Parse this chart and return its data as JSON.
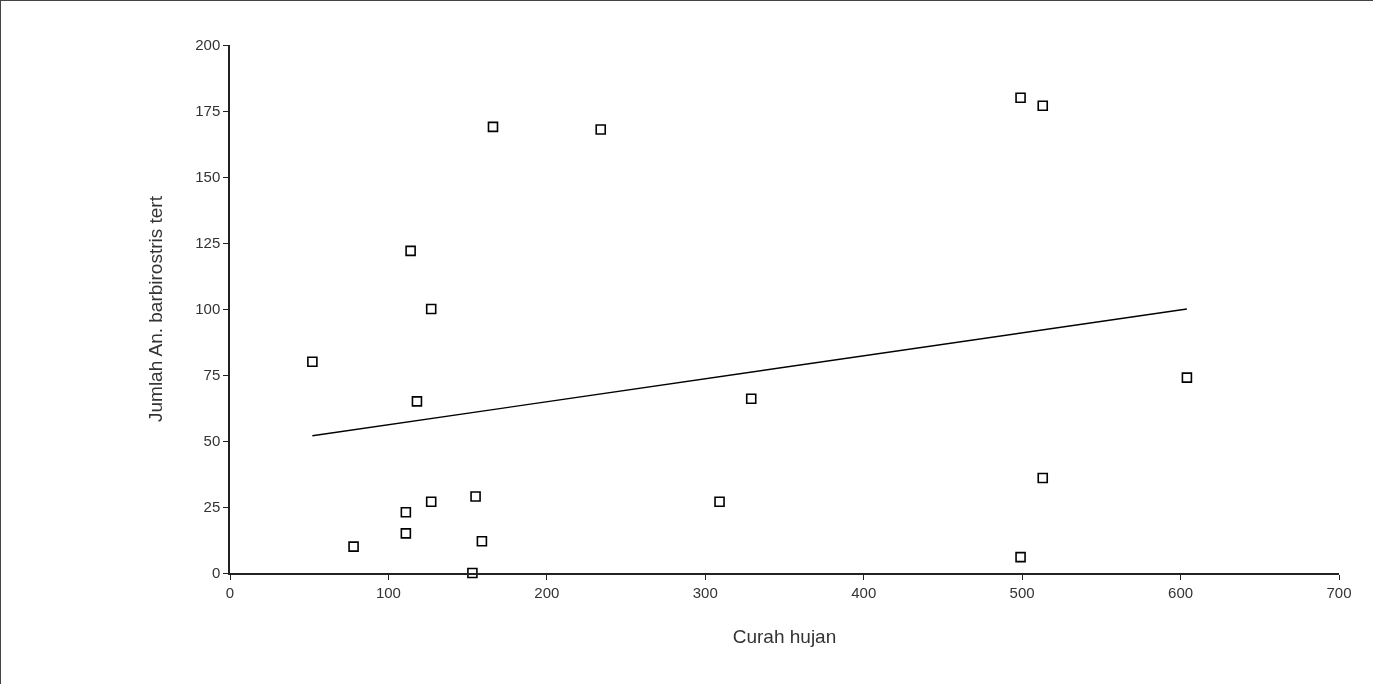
{
  "chart_data": {
    "type": "scatter",
    "xlabel": "Curah hujan",
    "ylabel": "Jumlah An. barbirostris tert",
    "xlim": [
      0,
      700
    ],
    "xticks": [
      0,
      100,
      200,
      300,
      400,
      500,
      600,
      700
    ],
    "ylim": [
      0,
      200
    ],
    "yticks": [
      0,
      25,
      50,
      75,
      100,
      125,
      150,
      175,
      200
    ],
    "grid": false,
    "marker": "square",
    "series": [
      {
        "color": "#000000",
        "x": [
          52,
          78,
          111,
          111,
          114,
          118,
          127,
          127,
          155,
          153,
          159,
          166,
          234,
          309,
          329,
          499,
          513,
          513,
          499,
          604
        ],
        "values": [
          80,
          10,
          23,
          15,
          122,
          65,
          100,
          27,
          29,
          0,
          12,
          169,
          168,
          27,
          66,
          180,
          177,
          36,
          6,
          74
        ]
      },
      {
        "type": "line",
        "color": "#000000",
        "line_style": "solid",
        "marker": "none",
        "x": [
          52,
          604
        ],
        "values": [
          52,
          100
        ]
      }
    ]
  }
}
